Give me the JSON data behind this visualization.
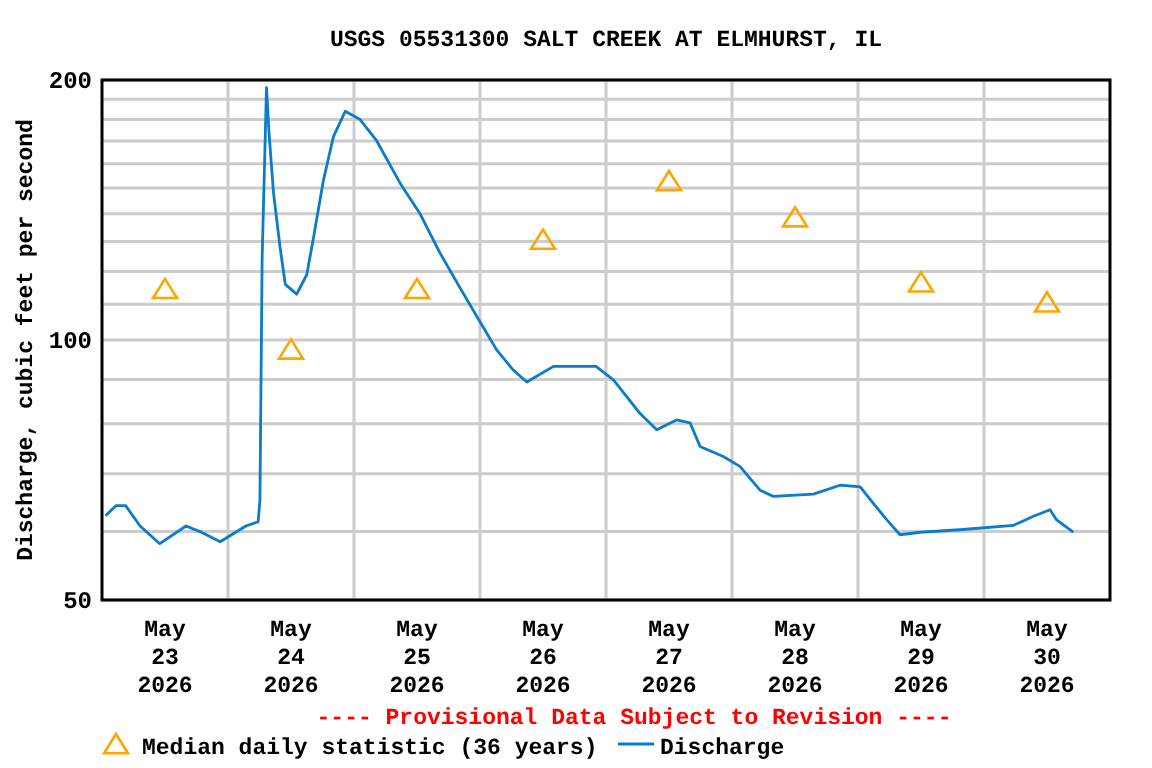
{
  "chart_data": {
    "type": "line",
    "title": "USGS 05531300 SALT CREEK AT ELMHURST, IL",
    "ylabel": "Discharge, cubic feet per second",
    "log": true,
    "grid": true,
    "legend": "bottom",
    "annotations": [
      "---- Provisional Data Subject to Revision ----"
    ],
    "xlim": [
      "2026-05-23T00:00",
      "2026-05-31T00:00"
    ],
    "xticks": [
      {
        "value": "2026-05-23T12:00",
        "label": "May\n23\n2026"
      },
      {
        "value": "2026-05-24T12:00",
        "label": "May\n24\n2026"
      },
      {
        "value": "2026-05-25T12:00",
        "label": "May\n25\n2026"
      },
      {
        "value": "2026-05-26T12:00",
        "label": "May\n26\n2026"
      },
      {
        "value": "2026-05-27T12:00",
        "label": "May\n27\n2026"
      },
      {
        "value": "2026-05-28T12:00",
        "label": "May\n28\n2026"
      },
      {
        "value": "2026-05-29T12:00",
        "label": "May\n29\n2026"
      },
      {
        "value": "2026-05-30T12:00",
        "label": "May\n30\n2026"
      },
      {
        "value": "2026-05-24T00:00",
        "label": null
      },
      {
        "value": "2026-05-25T00:00",
        "label": null
      },
      {
        "value": "2026-05-26T00:00",
        "label": null
      },
      {
        "value": "2026-05-27T00:00",
        "label": null
      },
      {
        "value": "2026-05-28T00:00",
        "label": null
      },
      {
        "value": "2026-05-29T00:00",
        "label": null
      },
      {
        "value": "2026-05-30T00:00",
        "label": null
      }
    ],
    "ylim": [
      50,
      200
    ],
    "yticks": [
      50,
      {
        "value": 60,
        "label": null
      },
      {
        "value": 70,
        "label": null
      },
      {
        "value": 80,
        "label": null
      },
      {
        "value": 90,
        "label": null
      },
      100,
      {
        "value": 110,
        "label": null
      },
      {
        "value": 120,
        "label": null
      },
      {
        "value": 130,
        "label": null
      },
      {
        "value": 140,
        "label": null
      },
      {
        "value": 150,
        "label": null
      },
      {
        "value": 160,
        "label": null
      },
      {
        "value": 170,
        "label": null
      },
      {
        "value": 180,
        "label": null
      },
      {
        "value": 190,
        "label": null
      },
      200
    ],
    "series": [
      {
        "name": "Median daily statistic (36 years)",
        "type": "scatter",
        "marker": "triangle",
        "color": "#ffa500",
        "x": [
          "2026-05-23T12:00",
          "2026-05-24T12:00",
          "2026-05-25T12:00",
          "2026-05-26T12:00",
          "2026-05-27T12:00",
          "2026-05-28T12:00",
          "2026-05-29T12:00",
          "2026-05-30T12:00"
        ],
        "values": [
          114,
          97,
          114,
          130,
          152,
          138,
          116,
          110
        ]
      },
      {
        "name": "Discharge",
        "marker": "none",
        "color": "#0a7cc9",
        "x": [
          "2026-05-23T00:40",
          "2026-05-23T02:40",
          "2026-05-23T04:30",
          "2026-05-23T07:15",
          "2026-05-23T11:00",
          "2026-05-23T16:00",
          "2026-05-23T18:40",
          "2026-05-23T22:30",
          "2026-05-24T03:25",
          "2026-05-24T05:45",
          "2026-05-24T06:05",
          "2026-05-24T06:30",
          "2026-05-24T07:20",
          "2026-05-24T07:50",
          "2026-05-24T08:40",
          "2026-05-24T09:55",
          "2026-05-24T10:55",
          "2026-05-24T13:05",
          "2026-05-24T15:00",
          "2026-05-24T16:15",
          "2026-05-24T18:10",
          "2026-05-24T20:05",
          "2026-05-24T22:20",
          "2026-05-25T01:10",
          "2026-05-25T04:20",
          "2026-05-25T08:45",
          "2026-05-25T12:35",
          "2026-05-25T16:25",
          "2026-05-25T20:10",
          "2026-05-26T00:00",
          "2026-05-26T03:10",
          "2026-05-26T06:20",
          "2026-05-26T08:55",
          "2026-05-26T14:00",
          "2026-05-26T22:05",
          "2026-05-27T01:25",
          "2026-05-27T06:30",
          "2026-05-27T09:40",
          "2026-05-27T13:25",
          "2026-05-27T16:00",
          "2026-05-27T17:55",
          "2026-05-27T22:20",
          "2026-05-28T01:30",
          "2026-05-28T05:20",
          "2026-05-28T07:55",
          "2026-05-28T15:30",
          "2026-05-28T20:35",
          "2026-05-29T00:25",
          "2026-05-29T02:55",
          "2026-05-29T05:30",
          "2026-05-29T08:00",
          "2026-05-29T11:50",
          "2026-05-29T19:25",
          "2026-05-30T05:35",
          "2026-05-30T09:25",
          "2026-05-30T12:35",
          "2026-05-30T13:50",
          "2026-05-30T17:00"
        ],
        "values": [
          62.6,
          64.3,
          64.3,
          60.9,
          58.1,
          60.9,
          60,
          58.4,
          60.9,
          61.6,
          65.3,
          124,
          196,
          173,
          148,
          128,
          116,
          113,
          119,
          131,
          153,
          172,
          184,
          180,
          170,
          152,
          140,
          126,
          115,
          105,
          97.4,
          92.3,
          89.4,
          93.2,
          93.2,
          89.9,
          82.2,
          78.7,
          80.8,
          80.2,
          75.3,
          73.3,
          71.4,
          67,
          65.9,
          66.3,
          67.9,
          67.6,
          64.7,
          61.9,
          59.5,
          59.9,
          60.3,
          61,
          62.5,
          63.6,
          61.9,
          59.9
        ]
      }
    ]
  }
}
